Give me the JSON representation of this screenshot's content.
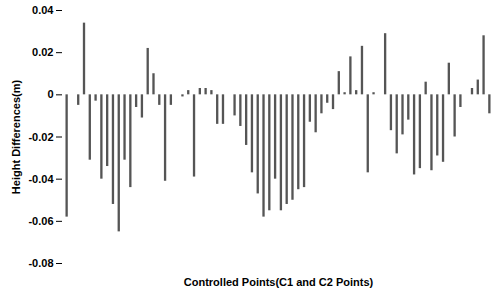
{
  "chart_data": {
    "type": "bar",
    "xlabel": "Controlled Points(C1 and C2 Points)",
    "ylabel": "Height Differences(m)",
    "categories": [
      null,
      null,
      null,
      null,
      null,
      null,
      null,
      null,
      null,
      null,
      null,
      null,
      null,
      null,
      null,
      null,
      null,
      null,
      null,
      null,
      null,
      null,
      null,
      null,
      null,
      null,
      null,
      null,
      null,
      null,
      null,
      null,
      null,
      null,
      null,
      null,
      null,
      null,
      null,
      null,
      null,
      null,
      null,
      null,
      null,
      null,
      null,
      null,
      null,
      null,
      null,
      null,
      null,
      null,
      null,
      null,
      null,
      null,
      null,
      null,
      null,
      null,
      null,
      null,
      null,
      null,
      null,
      null,
      null,
      null,
      null,
      null,
      null,
      null
    ],
    "values": [
      -0.058,
      0.0,
      -0.005,
      0.034,
      -0.031,
      -0.003,
      -0.04,
      -0.034,
      -0.052,
      -0.065,
      -0.031,
      -0.044,
      -0.006,
      -0.011,
      0.022,
      0.01,
      -0.005,
      -0.041,
      -0.005,
      0.0,
      -0.001,
      0.002,
      -0.039,
      0.003,
      0.003,
      0.002,
      -0.014,
      -0.014,
      0.0,
      -0.01,
      -0.015,
      -0.024,
      -0.037,
      -0.047,
      -0.058,
      -0.055,
      -0.04,
      -0.055,
      -0.052,
      -0.05,
      -0.045,
      -0.044,
      -0.013,
      -0.018,
      -0.009,
      -0.004,
      -0.007,
      0.011,
      0.001,
      0.018,
      0.002,
      0.023,
      -0.037,
      0.001,
      0.0,
      0.029,
      -0.017,
      -0.028,
      -0.019,
      -0.012,
      -0.038,
      -0.035,
      0.006,
      -0.036,
      -0.029,
      -0.032,
      0.015,
      -0.02,
      -0.006,
      0.0,
      0.003,
      0.007,
      0.028,
      -0.009
    ],
    "color": "#555555",
    "ylim": [
      -0.08,
      0.04
    ],
    "yticks": [
      -0.08,
      -0.06,
      -0.04,
      -0.02,
      0,
      0.02,
      0.04
    ],
    "grid": false,
    "tick_labels": "y"
  }
}
